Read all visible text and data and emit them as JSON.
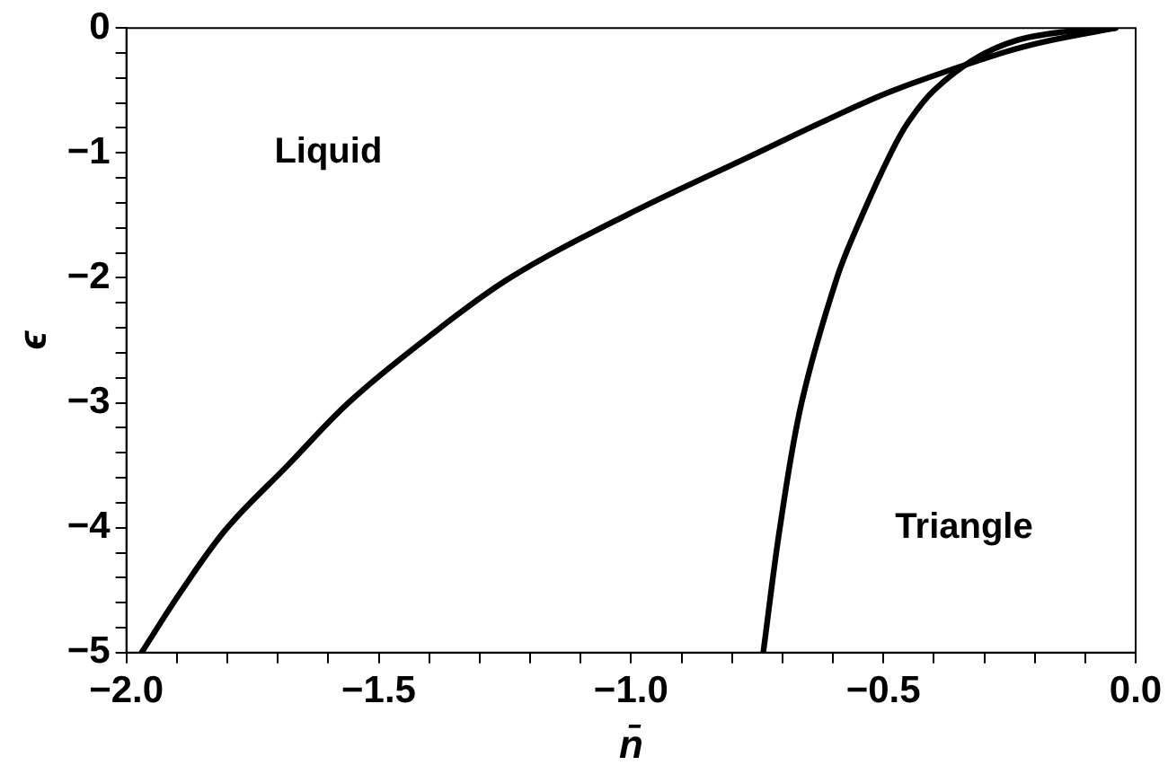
{
  "chart_data": {
    "type": "line",
    "xlabel": "n̄",
    "ylabel": "ϵ",
    "series": [
      {
        "color": "#000000",
        "x": [
          -1.97,
          -1.89,
          -1.8,
          -1.68,
          -1.56,
          -1.41,
          -1.24,
          -1.01,
          -0.75,
          -0.62,
          -0.48,
          -0.265,
          -0.17,
          -0.04
        ],
        "values": [
          -5,
          -4.5,
          -4,
          -3.5,
          -3,
          -2.5,
          -2,
          -1.5,
          -1,
          -0.75,
          -0.5,
          -0.2,
          -0.1,
          0
        ]
      },
      {
        "color": "#000000",
        "x": [
          -0.738,
          -0.705,
          -0.662,
          -0.592,
          -0.542,
          -0.485,
          -0.45,
          -0.4,
          -0.32,
          -0.237,
          -0.14,
          -0.04
        ],
        "values": [
          -5,
          -4,
          -3,
          -2,
          -1.5,
          -1,
          -0.75,
          -0.5,
          -0.25,
          -0.1,
          -0.03,
          0
        ]
      }
    ],
    "xlim": [
      -2,
      0
    ],
    "xticks": [
      {
        "value": -2,
        "label": "−2.0"
      },
      {
        "value": -1.9,
        "label": null
      },
      {
        "value": -1.8,
        "label": null
      },
      {
        "value": -1.7,
        "label": null
      },
      {
        "value": -1.6,
        "label": null
      },
      -1.5,
      {
        "value": -1.4,
        "label": null
      },
      {
        "value": -1.3,
        "label": null
      },
      {
        "value": -1.2,
        "label": null
      },
      {
        "value": -1.1,
        "label": null
      },
      {
        "value": -1,
        "label": "−1.0"
      },
      {
        "value": -0.9,
        "label": null
      },
      {
        "value": -0.8,
        "label": null
      },
      {
        "value": -0.7,
        "label": null
      },
      {
        "value": -0.6,
        "label": null
      },
      -0.5,
      {
        "value": -0.4,
        "label": null
      },
      {
        "value": -0.3,
        "label": null
      },
      {
        "value": -0.2,
        "label": null
      },
      {
        "value": -0.1,
        "label": null
      },
      {
        "value": 0,
        "label": "0.0"
      }
    ],
    "ylim": [
      -5,
      0
    ],
    "yticks": [
      -5,
      {
        "value": -4.8,
        "label": null
      },
      {
        "value": -4.6,
        "label": null
      },
      {
        "value": -4.4,
        "label": null
      },
      {
        "value": -4.2,
        "label": null
      },
      -4,
      {
        "value": -3.8,
        "label": null
      },
      {
        "value": -3.6,
        "label": null
      },
      {
        "value": -3.4,
        "label": null
      },
      {
        "value": -3.2,
        "label": null
      },
      -3,
      {
        "value": -2.8,
        "label": null
      },
      {
        "value": -2.6,
        "label": null
      },
      {
        "value": -2.4,
        "label": null
      },
      {
        "value": -2.2,
        "label": null
      },
      -2,
      {
        "value": -1.8,
        "label": null
      },
      {
        "value": -1.6,
        "label": null
      },
      {
        "value": -1.4,
        "label": null
      },
      {
        "value": -1.2,
        "label": null
      },
      -1,
      {
        "value": -0.8,
        "label": null
      },
      {
        "value": -0.6,
        "label": null
      },
      {
        "value": -0.4,
        "label": null
      },
      {
        "value": -0.2,
        "label": null
      },
      0
    ],
    "annotations": [
      "Liquid",
      "Triangle"
    ],
    "grid": false,
    "legend": false,
    "marker": "none",
    "line_style": "solid"
  }
}
